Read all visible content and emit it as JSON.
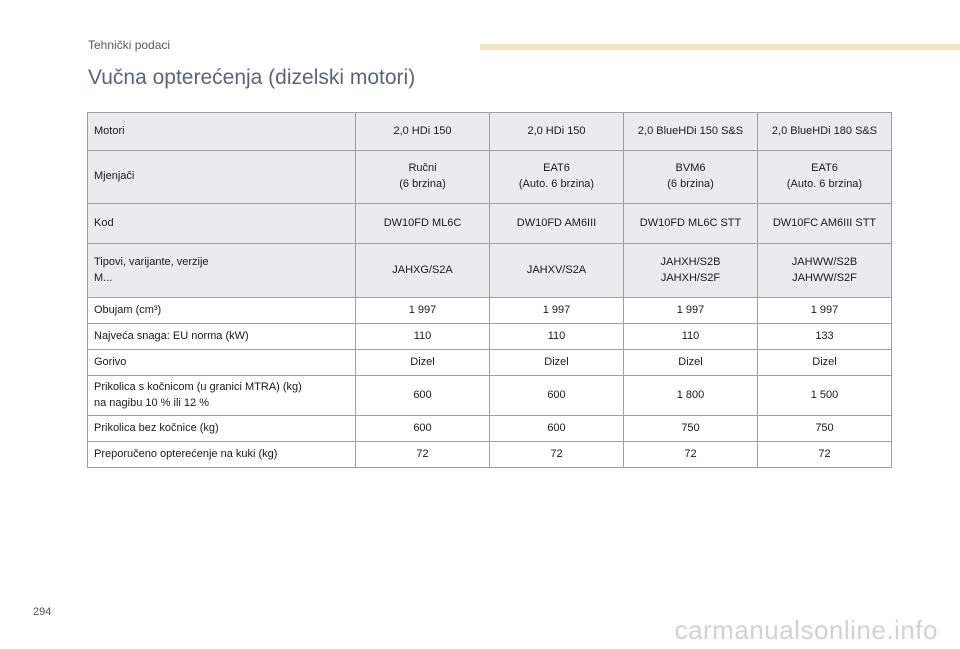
{
  "header": {
    "section": "Tehnički podaci",
    "title": "Vučna opterećenja (dizelski motori)"
  },
  "table": {
    "rows": [
      {
        "label": "Motori",
        "cells": [
          "2,0 HDi 150",
          "2,0 HDi 150",
          "2,0 BlueHDi 150 S&S",
          "2,0 BlueHDi 180 S&S"
        ]
      },
      {
        "label": "Mjenjači",
        "cells": [
          "Ručni\n(6 brzina)",
          "EAT6\n(Auto. 6 brzina)",
          "BVM6\n(6 brzina)",
          "EAT6\n(Auto. 6 brzina)"
        ]
      },
      {
        "label": "Kod",
        "cells": [
          "DW10FD ML6C",
          "DW10FD AM6III",
          "DW10FD ML6C STT",
          "DW10FC AM6III STT"
        ]
      },
      {
        "label": "Tipovi, varijante, verzije\nM...",
        "cells": [
          "JAHXG/S2A",
          "JAHXV/S2A",
          "JAHXH/S2B\nJAHXH/S2F",
          "JAHWW/S2B\nJAHWW/S2F"
        ]
      },
      {
        "label": "Obujam (cm³)",
        "cells": [
          "1 997",
          "1 997",
          "1 997",
          "1 997"
        ]
      },
      {
        "label": "Najveća snaga: EU norma (kW)",
        "cells": [
          "110",
          "110",
          "110",
          "133"
        ]
      },
      {
        "label": "Gorivo",
        "cells": [
          "Dizel",
          "Dizel",
          "Dizel",
          "Dizel"
        ]
      },
      {
        "label": "Prikolica s kočnicom (u granici MTRA) (kg)\nna nagibu 10 % ili 12 %",
        "cells": [
          "600",
          "600",
          "1 800",
          "1 500"
        ]
      },
      {
        "label": "Prikolica bez kočnice (kg)",
        "cells": [
          "600",
          "600",
          "750",
          "750"
        ]
      },
      {
        "label": "Preporučeno opterećenje na kuki (kg)",
        "cells": [
          "72",
          "72",
          "72",
          "72"
        ]
      }
    ]
  },
  "footer": {
    "page_number": "294",
    "watermark": "carmanualsonline.info"
  }
}
